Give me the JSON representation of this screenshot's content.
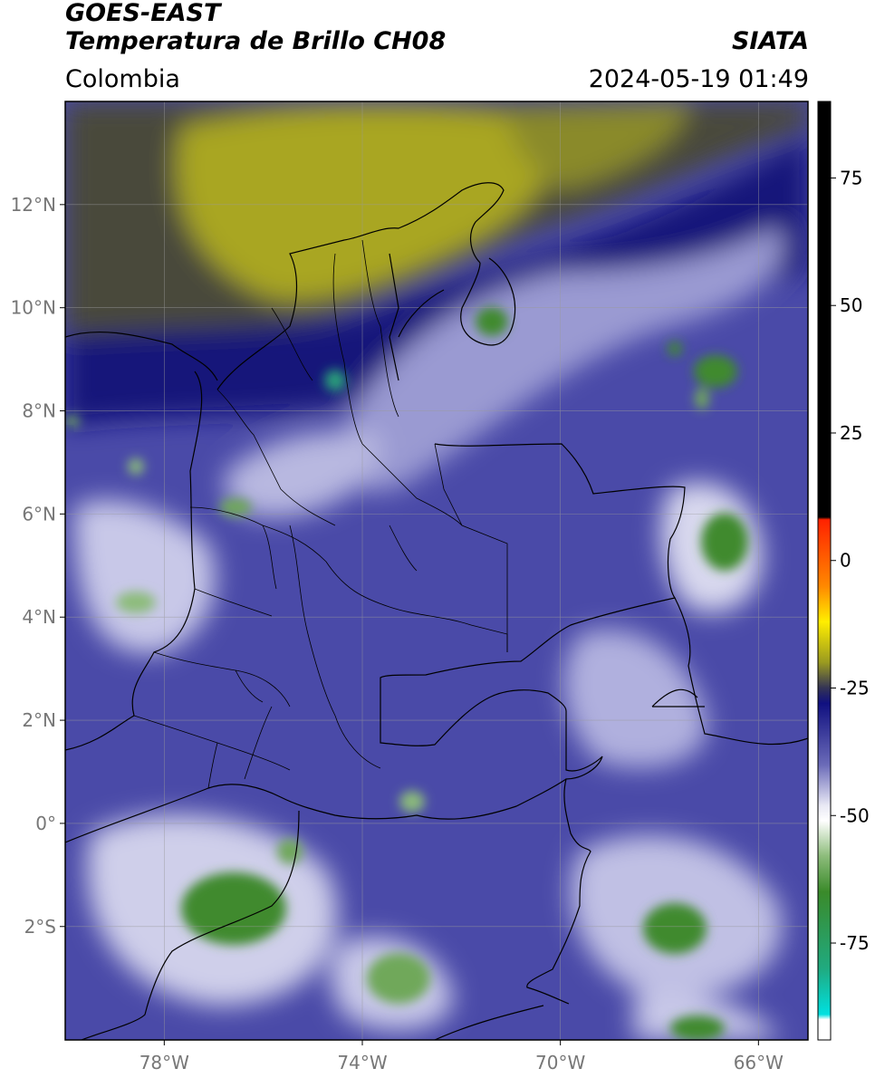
{
  "header": {
    "title_line1": "GOES-EAST",
    "title_line2": "Temperatura de Brillo CH08",
    "region": "Colombia",
    "brand": "SIATA",
    "timestamp": "2024-05-19 01:49"
  },
  "map": {
    "lat_labels": [
      "12°N",
      "10°N",
      "8°N",
      "6°N",
      "4°N",
      "2°N",
      "0°",
      "2°S"
    ],
    "lon_labels": [
      "78°W",
      "74°W",
      "70°W",
      "66°W"
    ],
    "lat_values": [
      12,
      10,
      8,
      6,
      4,
      2,
      0,
      -2
    ],
    "lon_values": [
      -78,
      -74,
      -70,
      -66
    ],
    "extent": {
      "lon_min": -80,
      "lon_max": -65,
      "lat_min": -4.2,
      "lat_max": 14
    }
  },
  "colorbar": {
    "ticks": [
      "75",
      "50",
      "25",
      "0",
      "-25",
      "-50",
      "-75"
    ],
    "tick_values": [
      75,
      50,
      25,
      0,
      -25,
      -50,
      -75
    ],
    "range": [
      -94,
      90
    ],
    "stops": [
      {
        "value": 90,
        "color": "#000000"
      },
      {
        "value": 8.5,
        "color": "#000000"
      },
      {
        "value": 8,
        "color": "#ff2200"
      },
      {
        "value": -5,
        "color": "#ff8800"
      },
      {
        "value": -12,
        "color": "#ffee00"
      },
      {
        "value": -20,
        "color": "#9a9a20"
      },
      {
        "value": -25,
        "color": "#333355"
      },
      {
        "value": -28,
        "color": "#101080"
      },
      {
        "value": -40,
        "color": "#6a6ab8"
      },
      {
        "value": -48,
        "color": "#e8e8f4"
      },
      {
        "value": -51,
        "color": "#ffffff"
      },
      {
        "value": -58,
        "color": "#8cbc7a"
      },
      {
        "value": -65,
        "color": "#3a8a2a"
      },
      {
        "value": -80,
        "color": "#20aa80"
      },
      {
        "value": -89,
        "color": "#00e0e0"
      },
      {
        "value": -90,
        "color": "#ffffff"
      },
      {
        "value": -94,
        "color": "#ffffff"
      }
    ]
  },
  "colors": {
    "deep_blue": "#14147a",
    "mid_blue": "#4a4aa8",
    "light_blue": "#8888c8",
    "olive": "#a9a624",
    "dark_olive": "#4a4a3a",
    "green": "#3f8a2e",
    "border": "#000000"
  }
}
